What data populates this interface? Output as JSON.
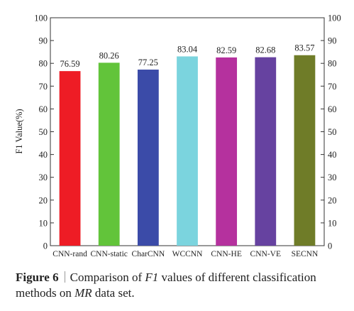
{
  "chart_data": {
    "type": "bar",
    "categories": [
      "CNN-rand",
      "CNN-static",
      "CharCNN",
      "WCCNN",
      "CNN-HE",
      "CNN-VE",
      "SECNN"
    ],
    "values": [
      76.59,
      80.26,
      77.25,
      83.04,
      82.59,
      82.68,
      83.57
    ],
    "value_labels": [
      "76.59",
      "80.26",
      "77.25",
      "83.04",
      "82.59",
      "82.68",
      "83.57"
    ],
    "colors": [
      "#ee1c25",
      "#62c43a",
      "#3b4ba8",
      "#7bd4de",
      "#b5319e",
      "#6642a0",
      "#6f7c28"
    ],
    "ylabel": "F1 Value(%)",
    "xlabel": "",
    "ylim": [
      0,
      100
    ],
    "yticks": [
      0,
      10,
      20,
      30,
      40,
      50,
      60,
      70,
      80,
      90,
      100
    ],
    "right_axis": true,
    "grid": false,
    "legend": false
  },
  "caption": {
    "figure_label": "Figure 6",
    "text_before": "Comparison of ",
    "text_italic1": "F1",
    "text_middle": " values of different classification methods on ",
    "text_italic2": "MR",
    "text_after": " data set."
  }
}
